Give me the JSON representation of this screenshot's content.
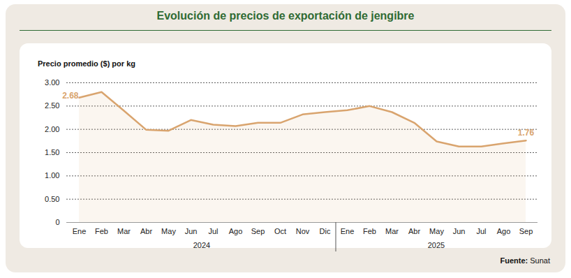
{
  "chart_data": {
    "type": "line",
    "title": "Evolución de precios de exportación de jengibre",
    "y_label": "Precio promedio ($) por kg",
    "source_label": "Fuente:",
    "source": "Sunat",
    "categories": [
      "Ene",
      "Feb",
      "Mar",
      "Abr",
      "May",
      "Jun",
      "Jul",
      "Ago",
      "Sep",
      "Oct",
      "Nov",
      "Dic",
      "Ene",
      "Feb",
      "Mar",
      "Abr",
      "May",
      "Jun",
      "Jul",
      "Ago",
      "Sep"
    ],
    "groups": [
      {
        "label": "2024",
        "count": 12
      },
      {
        "label": "2025",
        "count": 9
      }
    ],
    "values": [
      2.68,
      2.8,
      2.4,
      1.99,
      1.97,
      2.2,
      2.1,
      2.07,
      2.14,
      2.14,
      2.32,
      2.37,
      2.41,
      2.5,
      2.37,
      2.14,
      1.74,
      1.63,
      1.63,
      1.7,
      1.76
    ],
    "value_labels": [
      "2.68",
      null,
      null,
      null,
      null,
      null,
      null,
      null,
      null,
      null,
      null,
      null,
      null,
      null,
      null,
      null,
      null,
      null,
      null,
      null,
      "1.76"
    ],
    "color": "#d9a46e",
    "ylim": [
      0,
      3
    ],
    "yticks": [
      0,
      {
        "value": 0.5,
        "label": "0.50"
      },
      {
        "value": 1,
        "label": "1.00"
      },
      {
        "value": 1.5,
        "label": "1.50"
      },
      {
        "value": 2,
        "label": "2.00"
      },
      {
        "value": 2.5,
        "label": "2.50"
      },
      {
        "value": 3,
        "label": "3.00"
      }
    ],
    "grid": true
  }
}
